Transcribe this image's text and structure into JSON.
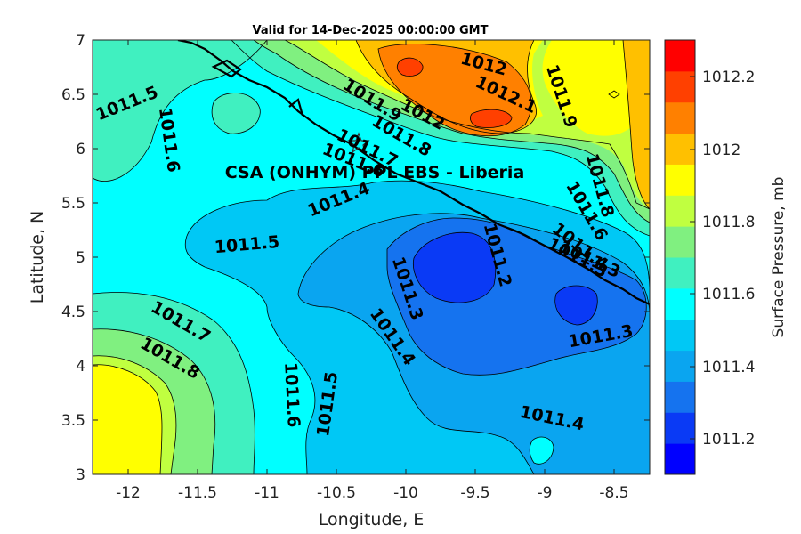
{
  "title": "Valid for 14-Dec-2025 00:00:00 GMT",
  "station_label": "CSA (ONHYM) PPL EBS  - Liberia",
  "xaxis": {
    "label": "Longitude, E",
    "ticks": [
      "-12",
      "-11.5",
      "-11",
      "-10.5",
      "-10",
      "-9.5",
      "-9",
      "-8.5"
    ]
  },
  "yaxis": {
    "label": "Latitude, N",
    "ticks": [
      "3",
      "3.5",
      "4",
      "4.5",
      "5",
      "5.5",
      "6",
      "6.5",
      "7"
    ]
  },
  "colorbar": {
    "title": "Surface Pressure, mb",
    "labels": [
      "1011.2",
      "1011.4",
      "1011.6",
      "1011.8",
      "1012",
      "1012.2"
    ],
    "colors": [
      "#0000ff",
      "#0a3af5",
      "#1573ef",
      "#0aa5f0",
      "#00c8f5",
      "#00ffff",
      "#40f0c0",
      "#80f080",
      "#c0ff40",
      "#ffff00",
      "#ffc000",
      "#ff8000",
      "#ff4000",
      "#ff0000"
    ]
  },
  "contour_labels": [
    "1011.5",
    "1011.6",
    "1011.9",
    "1012",
    "1012",
    "1012.1",
    "1011.9",
    "1011.8",
    "1011.7",
    "1011.6",
    "1011.4",
    "1011.8",
    "1011.6",
    "1011.4",
    "1011.3",
    "1011.5",
    "1011.2",
    "1011.3",
    "1011.7",
    "1011.8",
    "1011.4",
    "1011.3",
    "1011.6",
    "1011.5",
    "1011.3",
    "1011.4"
  ],
  "chart_data": {
    "type": "heatmap",
    "title": "Valid for 14-Dec-2025 00:00:00 GMT",
    "xlabel": "Longitude, E",
    "ylabel": "Latitude, N",
    "xlim": [
      -12.3,
      -8.25
    ],
    "ylim": [
      3,
      7
    ],
    "colorbar_title": "Surface Pressure, mb",
    "colorbar_range": [
      1011.1,
      1012.3
    ],
    "colorbar_step": 0.1
  }
}
